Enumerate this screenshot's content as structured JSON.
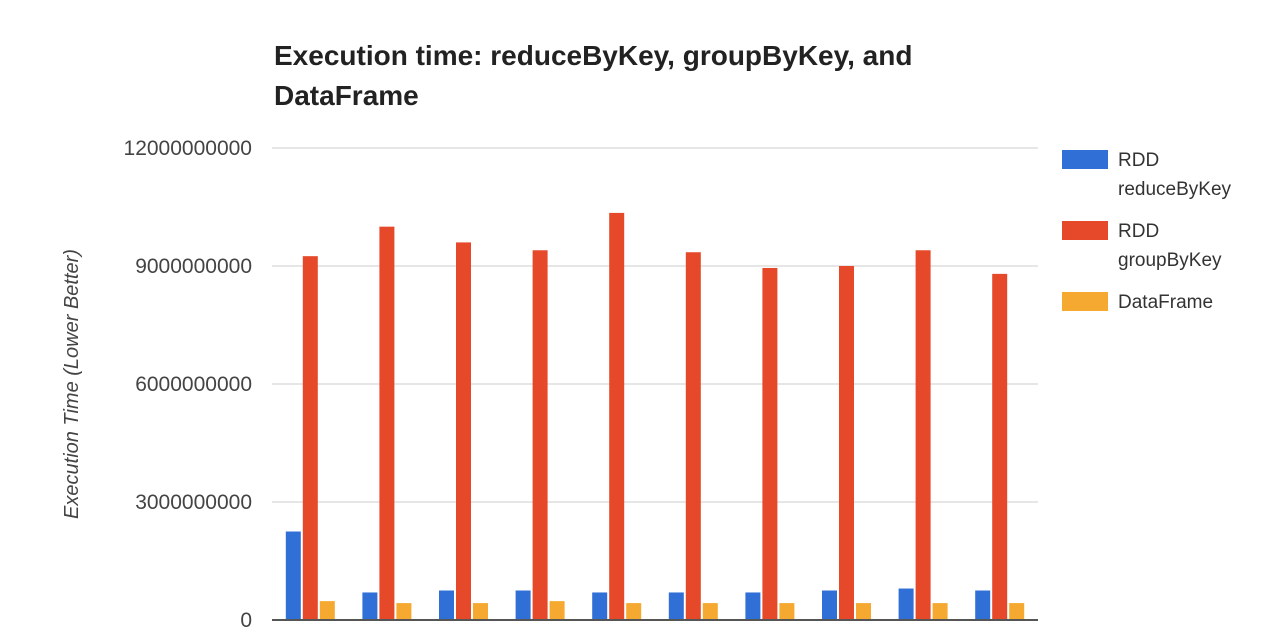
{
  "chart_data": {
    "type": "bar",
    "title": "Execution time: reduceByKey, groupByKey, and DataFrame",
    "xlabel": "",
    "ylabel": "Execution Time (Lower Better)",
    "ylim": [
      0,
      12000000000
    ],
    "yticks": [
      0,
      3000000000,
      6000000000,
      9000000000,
      12000000000
    ],
    "ytick_labels": [
      "0",
      "3000000000",
      "6000000000",
      "9000000000",
      "12000000000"
    ],
    "grid": true,
    "legend_position": "right",
    "categories": [
      "",
      "",
      "",
      "",
      "",
      "",
      "",
      "",
      "",
      ""
    ],
    "series": [
      {
        "name": "RDD reduceByKey",
        "legend_lines": [
          "RDD",
          "reduceByKey"
        ],
        "color": "#2f6fd6",
        "values": [
          2250000000,
          700000000,
          750000000,
          750000000,
          700000000,
          700000000,
          700000000,
          750000000,
          800000000,
          750000000
        ]
      },
      {
        "name": "RDD groupByKey",
        "legend_lines": [
          "RDD",
          "groupByKey"
        ],
        "color": "#e5492a",
        "values": [
          9250000000,
          10000000000,
          9600000000,
          9400000000,
          10350000000,
          9350000000,
          8950000000,
          9000000000,
          9400000000,
          8800000000
        ]
      },
      {
        "name": "DataFrame",
        "legend_lines": [
          "DataFrame"
        ],
        "color": "#f5a930",
        "values": [
          480000000,
          430000000,
          430000000,
          480000000,
          430000000,
          430000000,
          430000000,
          430000000,
          430000000,
          430000000
        ]
      }
    ]
  }
}
